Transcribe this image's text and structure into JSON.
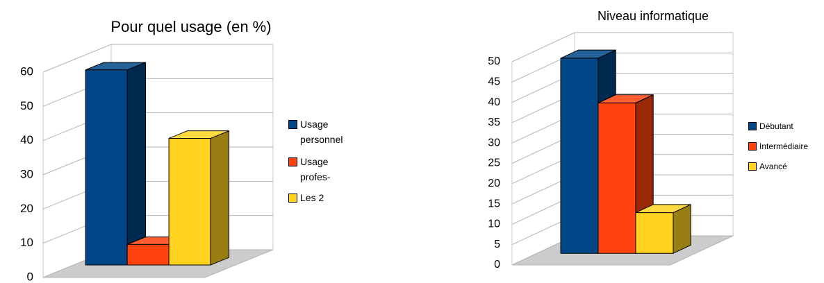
{
  "chart_data": [
    {
      "type": "bar",
      "title": "Pour quel usage (en %)",
      "series": [
        {
          "name": "Usage personnel",
          "color": "#004586",
          "values": [
            57
          ]
        },
        {
          "name": "Usage profes-",
          "color": "#ff420e",
          "values": [
            6
          ]
        },
        {
          "name": "Les 2",
          "color": "#ffd320",
          "values": [
            37
          ]
        }
      ],
      "ylim": [
        0,
        60
      ],
      "yticks": [
        0,
        10,
        20,
        30,
        40,
        50,
        60
      ],
      "grid": true,
      "legend": "right"
    },
    {
      "type": "bar",
      "title": "Niveau informatique",
      "series": [
        {
          "name": "Débutant",
          "color": "#004586",
          "values": [
            48
          ]
        },
        {
          "name": "Intermédiaire",
          "color": "#ff420e",
          "values": [
            37
          ]
        },
        {
          "name": "Avancé",
          "color": "#ffd320",
          "values": [
            10
          ]
        }
      ],
      "ylim": [
        0,
        50
      ],
      "yticks": [
        0,
        5,
        10,
        15,
        20,
        25,
        30,
        35,
        40,
        45,
        50
      ],
      "grid": true,
      "legend": "right"
    }
  ]
}
